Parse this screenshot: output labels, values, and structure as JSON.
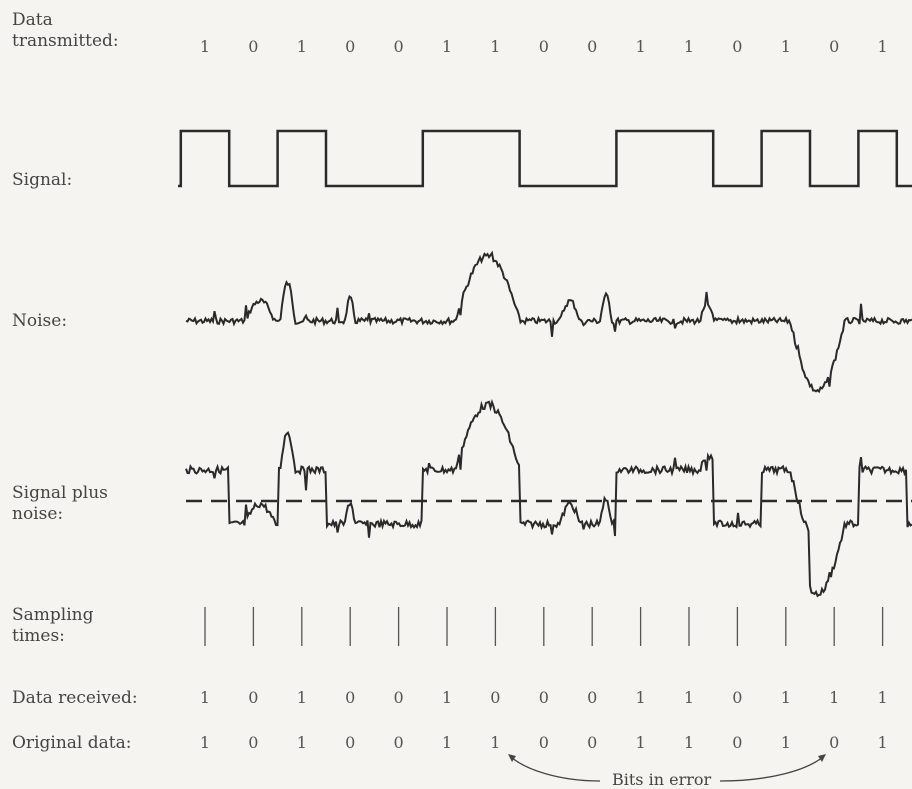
{
  "labels": {
    "data_transmitted": "Data\ntransmitted:",
    "signal": "Signal:",
    "noise": "Noise:",
    "signal_plus_noise": "Signal plus\nnoise:",
    "sampling_times": "Sampling\ntimes:",
    "data_received": "Data received:",
    "original_data": "Original data:"
  },
  "data_transmitted": [
    1,
    0,
    1,
    0,
    0,
    1,
    1,
    0,
    0,
    1,
    1,
    0,
    1,
    0,
    1
  ],
  "data_received": [
    1,
    0,
    1,
    0,
    0,
    1,
    0,
    0,
    0,
    1,
    1,
    0,
    1,
    1,
    1
  ],
  "original_data": [
    1,
    0,
    1,
    0,
    0,
    1,
    1,
    0,
    0,
    1,
    1,
    0,
    1,
    0,
    1
  ],
  "annotation": "Bits in error",
  "colors": {
    "ink": "#2a2a2a",
    "paper": "#f6f4f1"
  }
}
